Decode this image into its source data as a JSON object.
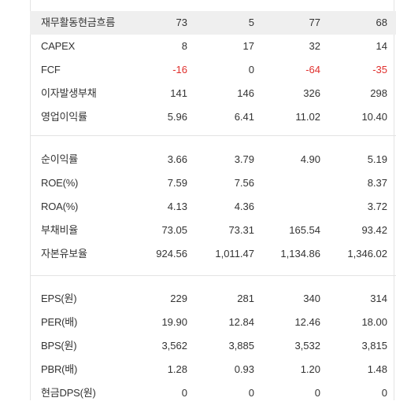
{
  "section_cashflow": [
    {
      "label": "재무활동현금흐름",
      "values": [
        "73",
        "5",
        "77",
        "68"
      ],
      "neg": [
        false,
        false,
        false,
        false
      ]
    },
    {
      "label": "CAPEX",
      "values": [
        "8",
        "17",
        "32",
        "14"
      ],
      "neg": [
        false,
        false,
        false,
        false
      ]
    },
    {
      "label": "FCF",
      "values": [
        "-16",
        "0",
        "-64",
        "-35"
      ],
      "neg": [
        true,
        false,
        true,
        true
      ]
    },
    {
      "label": "이자발생부채",
      "values": [
        "141",
        "146",
        "326",
        "298"
      ],
      "neg": [
        false,
        false,
        false,
        false
      ]
    },
    {
      "label": "영업이익률",
      "values": [
        "5.96",
        "6.41",
        "11.02",
        "10.40"
      ],
      "neg": [
        false,
        false,
        false,
        false
      ]
    }
  ],
  "section_ratios": [
    {
      "label": "순이익률",
      "values": [
        "3.66",
        "3.79",
        "4.90",
        "5.19"
      ]
    },
    {
      "label": "ROE(%)",
      "values": [
        "7.59",
        "7.56",
        "",
        "8.37"
      ]
    },
    {
      "label": "ROA(%)",
      "values": [
        "4.13",
        "4.36",
        "",
        "3.72"
      ]
    },
    {
      "label": "부채비율",
      "values": [
        "73.05",
        "73.31",
        "165.54",
        "93.42"
      ]
    },
    {
      "label": "자본유보율",
      "values": [
        "924.56",
        "1,011.47",
        "1,134.86",
        "1,346.02"
      ]
    }
  ],
  "section_pershare": [
    {
      "label": "EPS(원)",
      "values": [
        "229",
        "281",
        "340",
        "314"
      ]
    },
    {
      "label": "PER(배)",
      "values": [
        "19.90",
        "12.84",
        "12.46",
        "18.00"
      ]
    },
    {
      "label": "BPS(원)",
      "values": [
        "3,562",
        "3,885",
        "3,532",
        "3,815"
      ]
    },
    {
      "label": "PBR(배)",
      "values": [
        "1.28",
        "0.93",
        "1.20",
        "1.48"
      ]
    },
    {
      "label": "현금DPS(원)",
      "values": [
        "0",
        "0",
        "0",
        "0"
      ]
    }
  ],
  "colors": {
    "negative": "#e0302d",
    "shaded_row": "#efefef",
    "grid": "#e3e3e3",
    "text": "#333333"
  }
}
